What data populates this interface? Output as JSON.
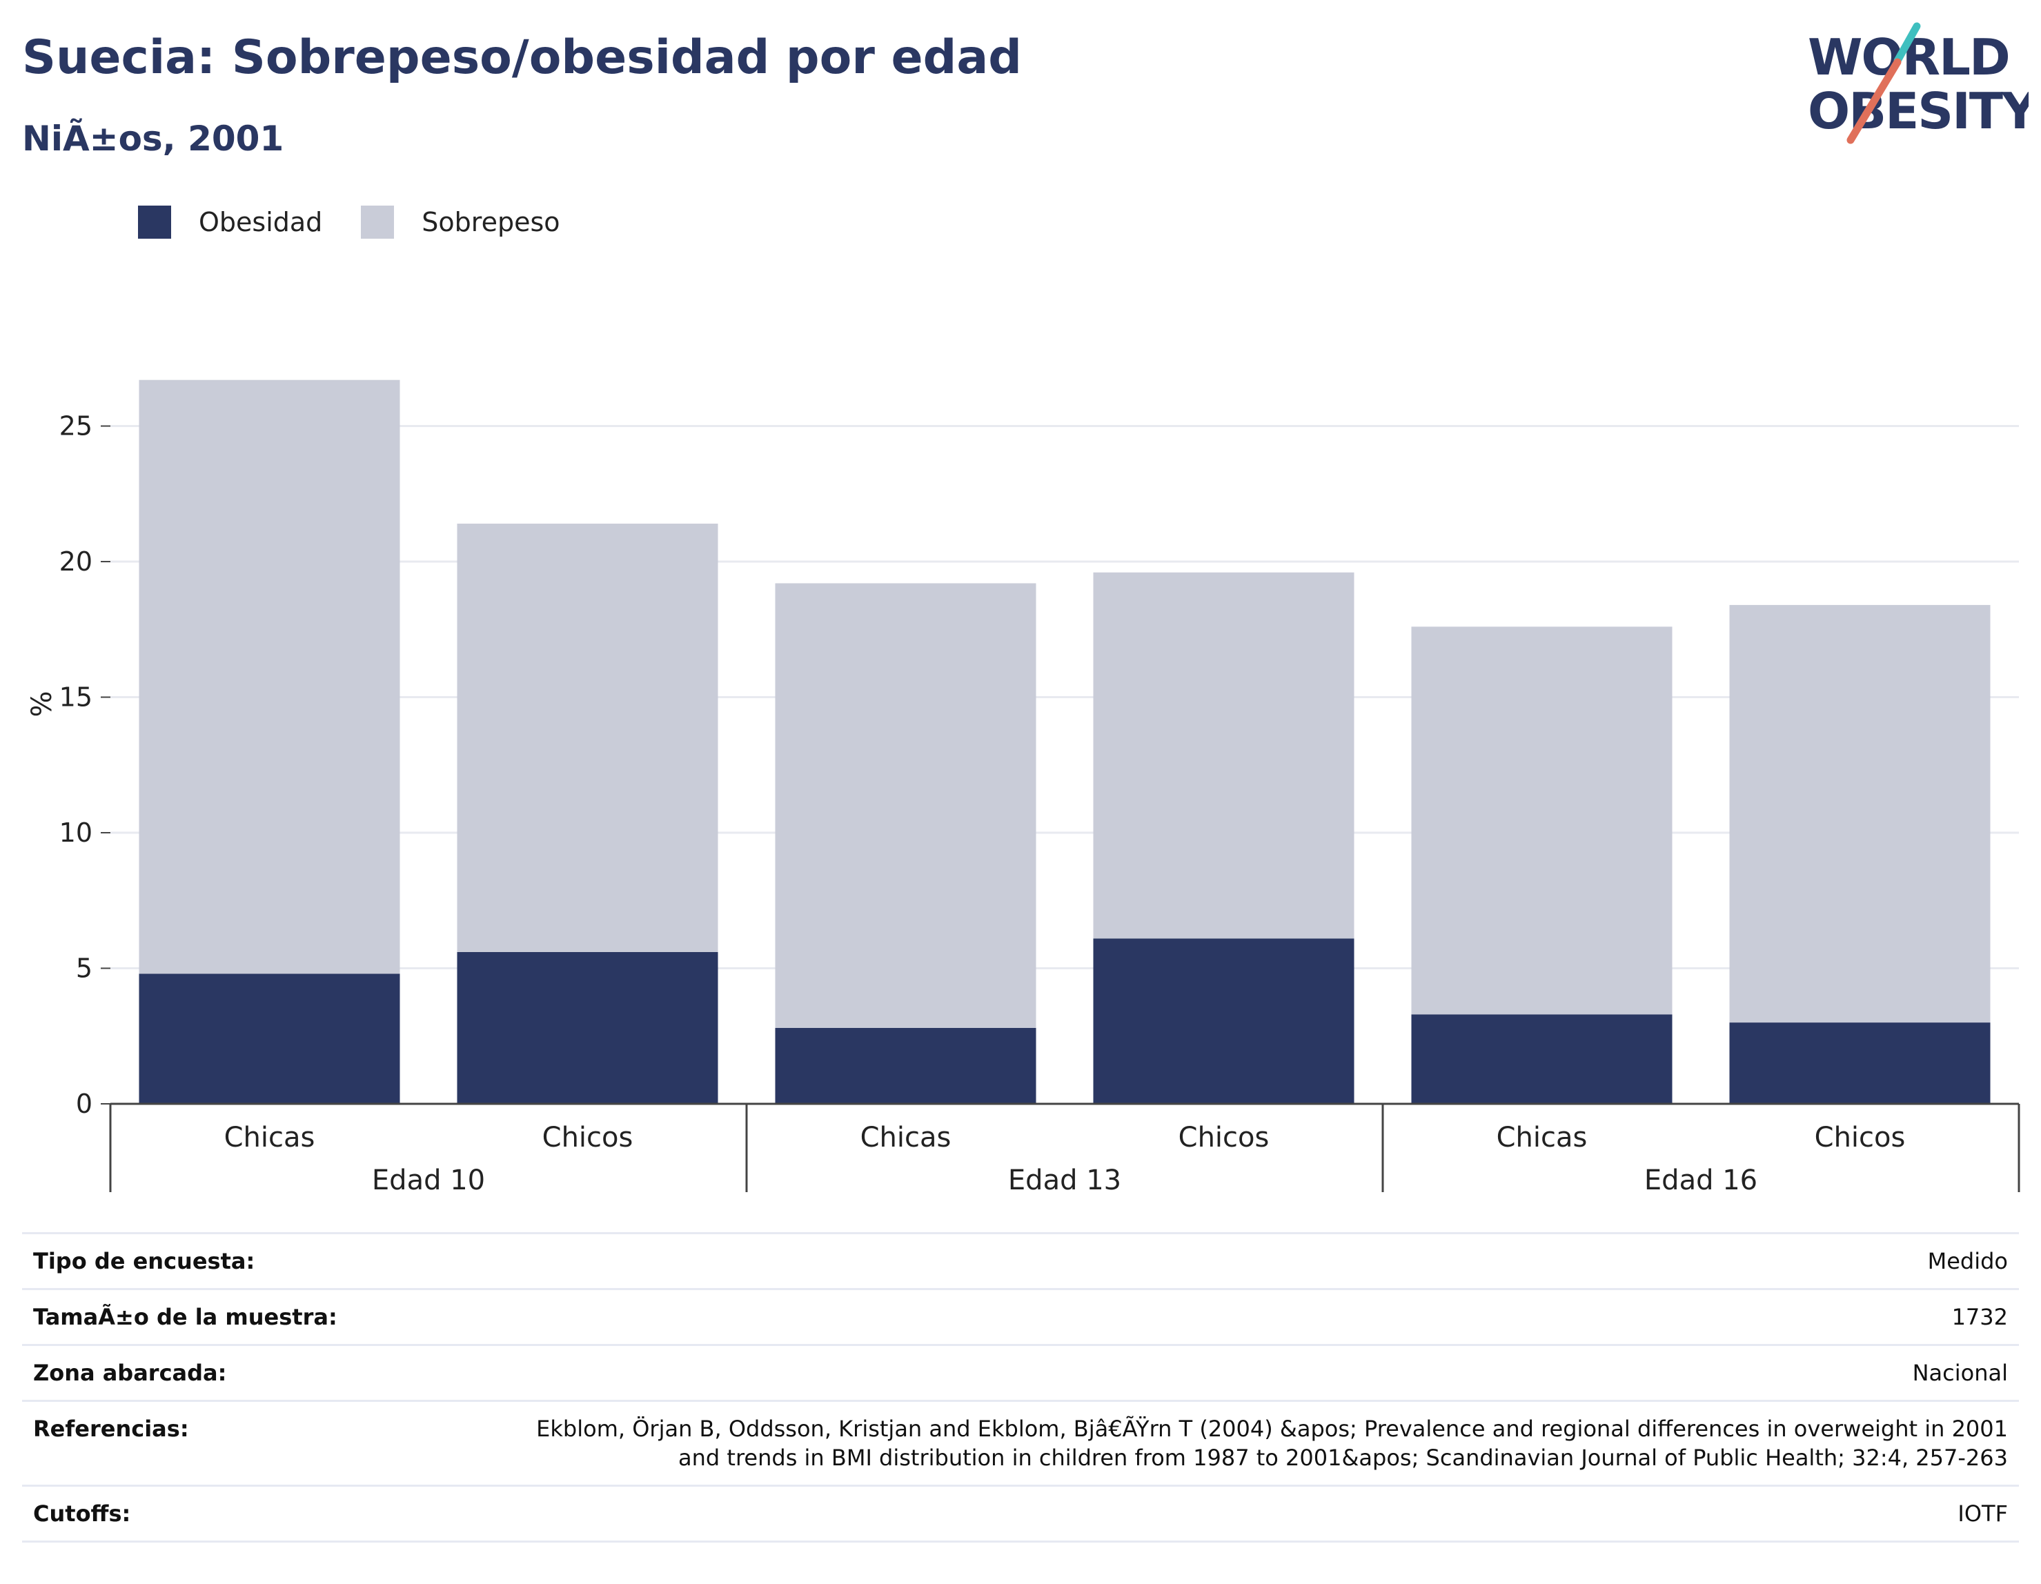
{
  "header": {
    "title": "Suecia: Sobrepeso/obesidad por edad",
    "subtitle": "NiÃ±os, 2001",
    "logo_line1": "WORLD",
    "logo_line2": "OBESITY"
  },
  "colors": {
    "obesidad": "#2a3762",
    "sobrepeso": "#c9ccd8",
    "title": "#2a3762",
    "logo_teal": "#3fbfbf",
    "logo_red": "#e0705a"
  },
  "chart_data": {
    "type": "bar",
    "stacked": true,
    "ylabel": "%",
    "ylim": [
      0,
      28.5
    ],
    "yticks": [
      0,
      5,
      10,
      15,
      20,
      25
    ],
    "grid": true,
    "legend_position": "top-left",
    "groups": [
      {
        "label": "Edad 10",
        "categories": [
          "Chicas",
          "Chicos"
        ]
      },
      {
        "label": "Edad 13",
        "categories": [
          "Chicas",
          "Chicos"
        ]
      },
      {
        "label": "Edad 16",
        "categories": [
          "Chicas",
          "Chicos"
        ]
      }
    ],
    "series": [
      {
        "name": "Obesidad",
        "values": [
          4.8,
          5.6,
          2.8,
          6.1,
          3.3,
          3.0
        ]
      },
      {
        "name": "Sobrepeso",
        "values": [
          21.9,
          15.8,
          16.4,
          13.5,
          14.3,
          15.4
        ]
      }
    ]
  },
  "meta": [
    {
      "label": "Tipo de encuesta:",
      "value": "Medido"
    },
    {
      "label": "TamaÃ±o de la muestra:",
      "value": "1732"
    },
    {
      "label": "Zona abarcada:",
      "value": "Nacional"
    },
    {
      "label": "Referencias:",
      "value": "Ekblom, Örjan B, Oddsson, Kristjan and Ekblom, Bjâ€ÃŸrn T (2004) &apos; Prevalence and regional differences in overweight in 2001 and trends in BMI distribution in children from 1987 to 2001&apos; Scandinavian Journal of Public Health; 32:4, 257-263"
    },
    {
      "label": "Cutoffs:",
      "value": "IOTF"
    }
  ]
}
